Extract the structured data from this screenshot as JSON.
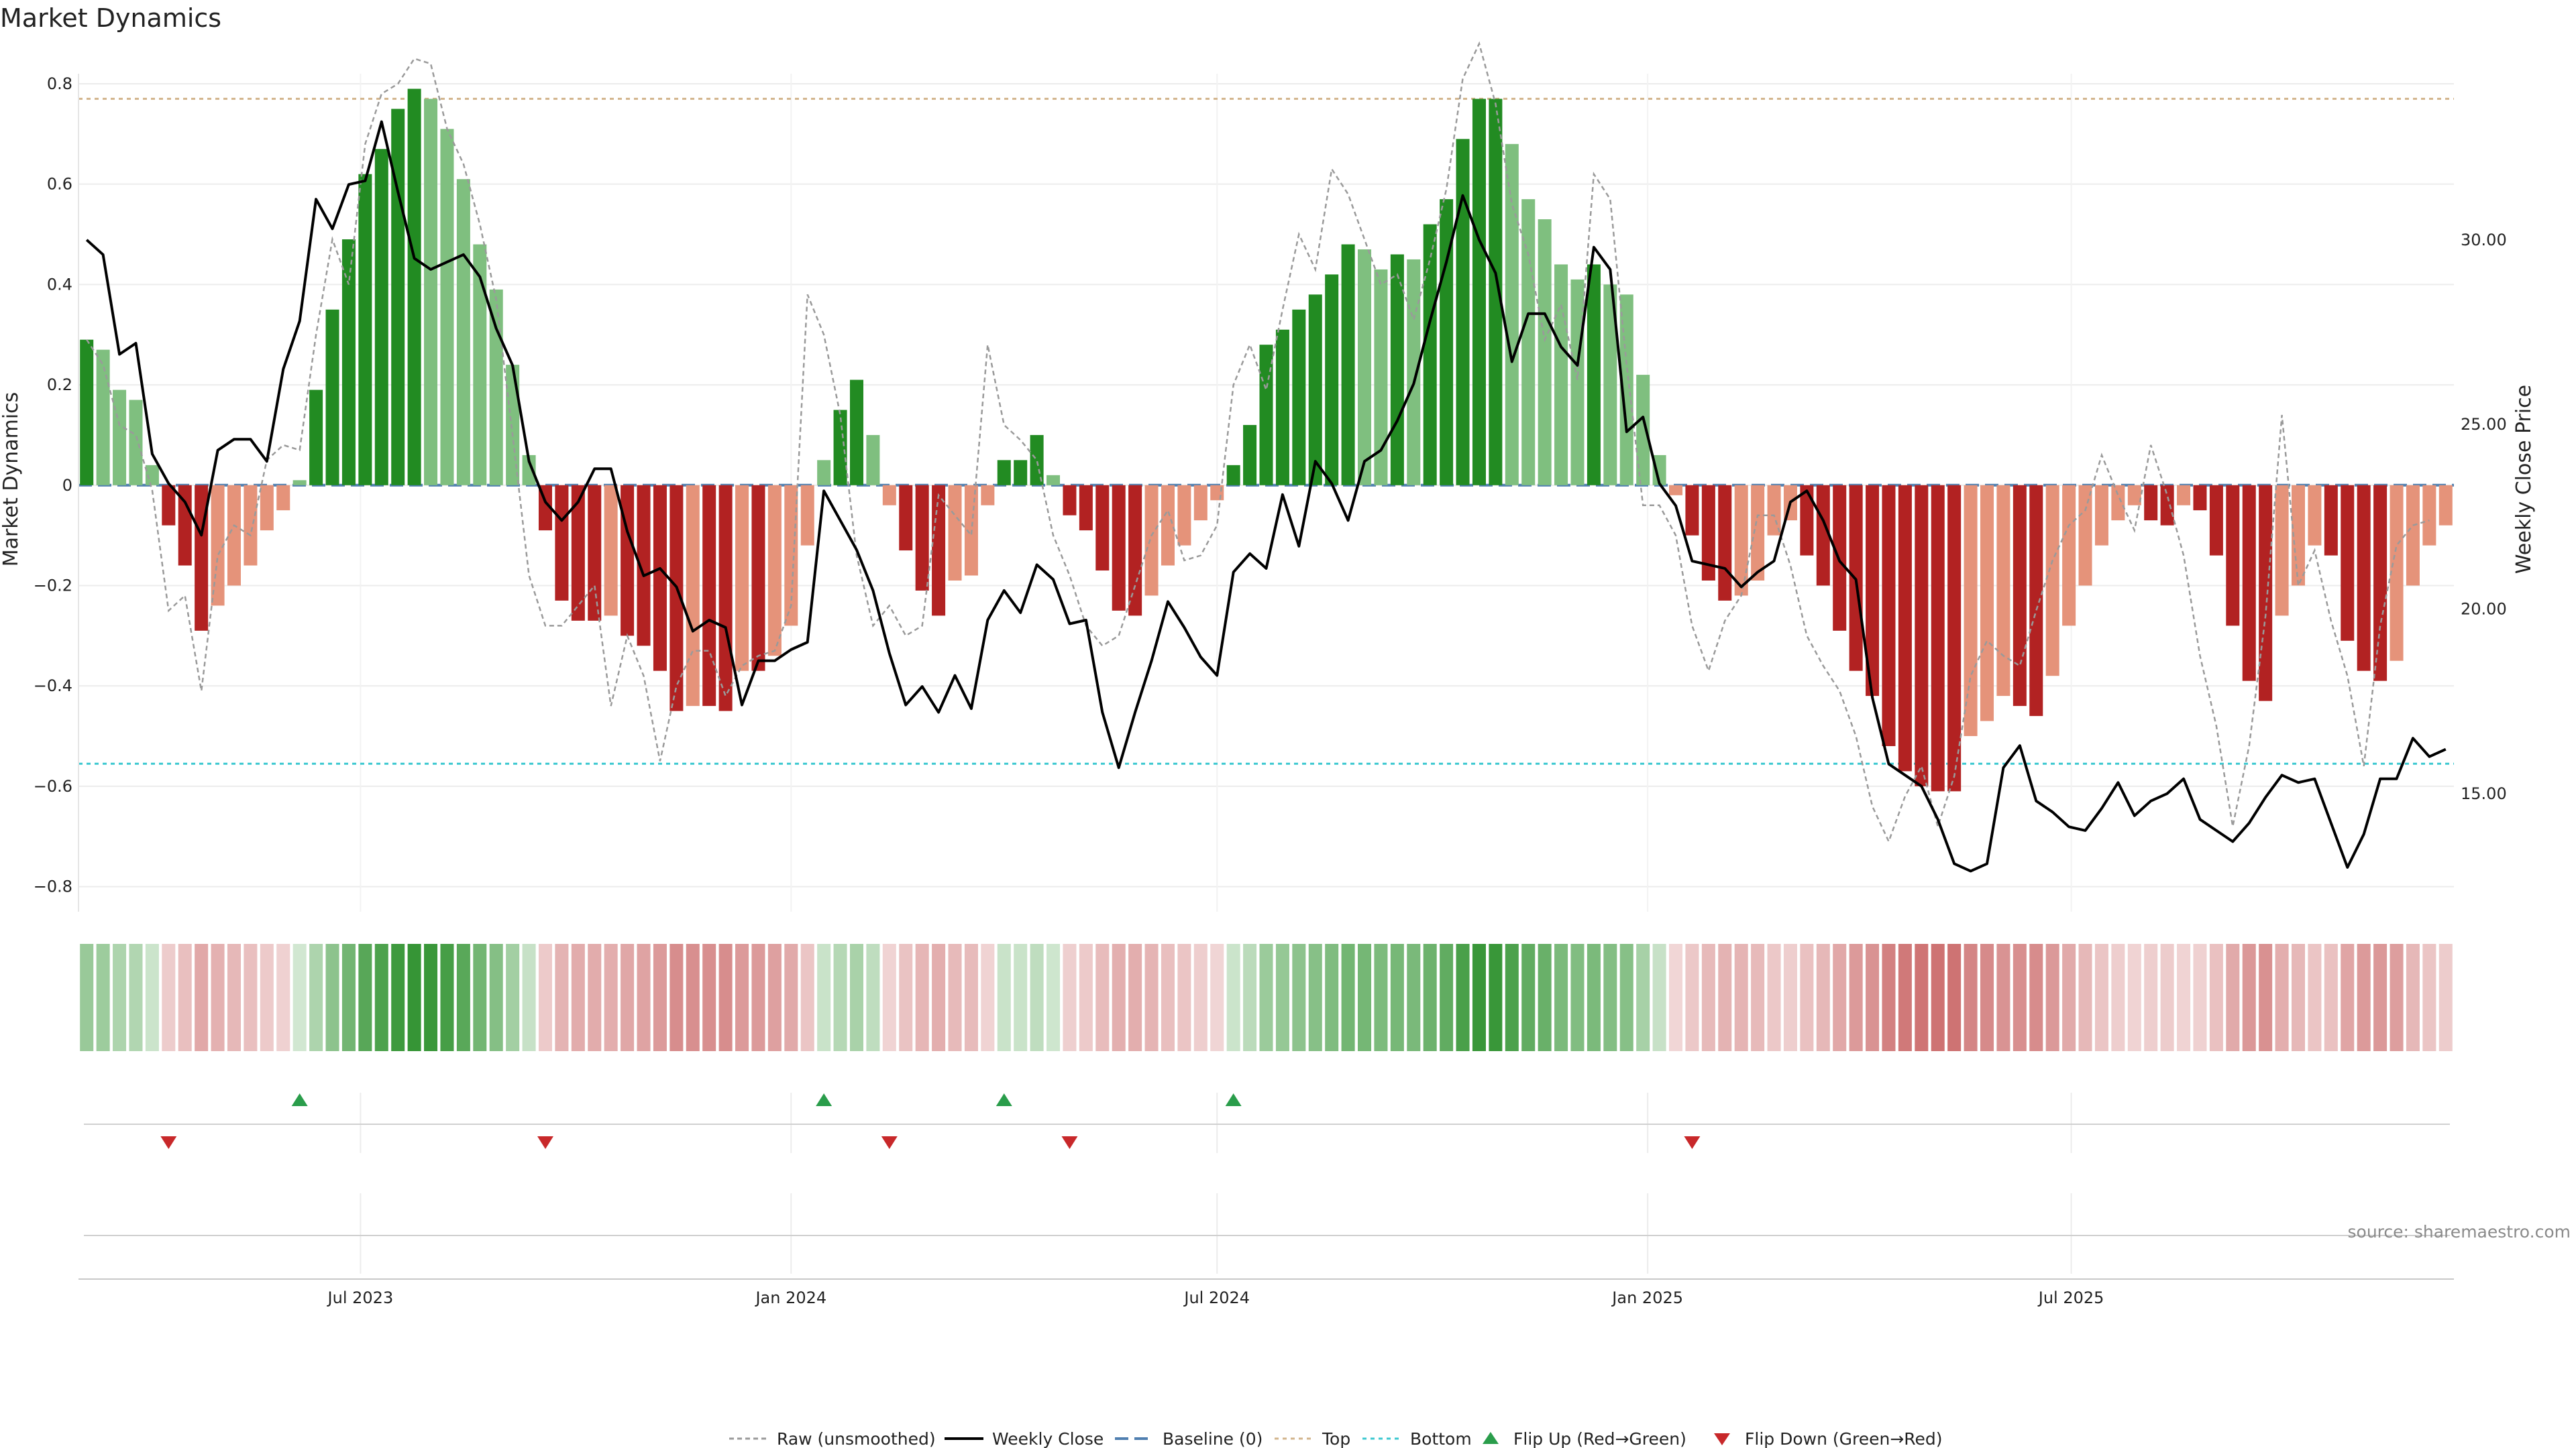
{
  "chart_data": {
    "type": "bar",
    "title": "Market Dynamics",
    "ylabel_left": "Market Dynamics",
    "ylabel_right": "Weekly Close Price",
    "ylim_left": [
      -0.85,
      0.82
    ],
    "ylim_right": [
      11.8,
      34.5
    ],
    "yticks_left": [
      "0.8",
      "0.6",
      "0.4",
      "0.2",
      "0",
      "−0.2",
      "−0.4",
      "−0.6",
      "−0.8"
    ],
    "yticks_left_values": [
      0.8,
      0.6,
      0.4,
      0.2,
      0,
      -0.2,
      -0.4,
      -0.6,
      -0.8
    ],
    "yticks_right": [
      "30.00",
      "25.00",
      "20.00",
      "15.00"
    ],
    "yticks_right_values": [
      30,
      25,
      20,
      15
    ],
    "x_start": "2023-03-06",
    "xticks": [
      {
        "label": "Jul 2023",
        "date": "2023-07-01"
      },
      {
        "label": "Jan 2024",
        "date": "2024-01-01"
      },
      {
        "label": "Jul 2024",
        "date": "2024-07-01"
      },
      {
        "label": "Jan 2025",
        "date": "2025-01-01"
      },
      {
        "label": "Jul 2025",
        "date": "2025-07-01"
      }
    ],
    "reference_lines": {
      "baseline": 0,
      "top": 0.77,
      "bottom": -0.555
    },
    "market_dynamics": [
      0.29,
      0.27,
      0.19,
      0.17,
      0.04,
      -0.08,
      -0.16,
      -0.29,
      -0.24,
      -0.2,
      -0.16,
      -0.09,
      -0.05,
      0.01,
      0.19,
      0.35,
      0.49,
      0.62,
      0.67,
      0.75,
      0.79,
      0.77,
      0.71,
      0.61,
      0.48,
      0.39,
      0.24,
      0.06,
      -0.09,
      -0.23,
      -0.27,
      -0.27,
      -0.26,
      -0.3,
      -0.32,
      -0.37,
      -0.45,
      -0.44,
      -0.44,
      -0.45,
      -0.37,
      -0.37,
      -0.34,
      -0.28,
      -0.12,
      0.05,
      0.15,
      0.21,
      0.1,
      -0.04,
      -0.13,
      -0.21,
      -0.26,
      -0.19,
      -0.18,
      -0.04,
      0.05,
      0.05,
      0.1,
      0.02,
      -0.06,
      -0.09,
      -0.17,
      -0.25,
      -0.26,
      -0.22,
      -0.16,
      -0.12,
      -0.07,
      -0.03,
      0.04,
      0.12,
      0.28,
      0.31,
      0.35,
      0.38,
      0.42,
      0.48,
      0.47,
      0.43,
      0.46,
      0.45,
      0.52,
      0.57,
      0.69,
      0.77,
      0.77,
      0.68,
      0.57,
      0.53,
      0.44,
      0.41,
      0.44,
      0.4,
      0.38,
      0.22,
      0.06,
      -0.02,
      -0.1,
      -0.19,
      -0.23,
      -0.22,
      -0.19,
      -0.1,
      -0.07,
      -0.14,
      -0.2,
      -0.29,
      -0.37,
      -0.42,
      -0.52,
      -0.57,
      -0.6,
      -0.61,
      -0.61,
      -0.5,
      -0.47,
      -0.42,
      -0.44,
      -0.46,
      -0.38,
      -0.28,
      -0.2,
      -0.12,
      -0.07,
      -0.04,
      -0.07,
      -0.08,
      -0.04,
      -0.05,
      -0.14,
      -0.28,
      -0.39,
      -0.43,
      -0.26,
      -0.2,
      -0.12,
      -0.14,
      -0.31,
      -0.37,
      -0.39,
      -0.35,
      -0.2,
      -0.12,
      -0.08
    ],
    "raw_unsmoothed": [
      0.29,
      0.24,
      0.12,
      0.1,
      -0.01,
      -0.25,
      -0.22,
      -0.41,
      -0.14,
      -0.08,
      -0.1,
      0.05,
      0.08,
      0.07,
      0.3,
      0.49,
      0.4,
      0.68,
      0.78,
      0.8,
      0.85,
      0.84,
      0.71,
      0.64,
      0.52,
      0.37,
      0.1,
      -0.18,
      -0.28,
      -0.28,
      -0.24,
      -0.2,
      -0.44,
      -0.3,
      -0.38,
      -0.55,
      -0.4,
      -0.33,
      -0.33,
      -0.42,
      -0.36,
      -0.34,
      -0.33,
      -0.24,
      0.38,
      0.3,
      0.14,
      -0.14,
      -0.28,
      -0.24,
      -0.3,
      -0.28,
      -0.02,
      -0.06,
      -0.1,
      0.28,
      0.12,
      0.09,
      0.05,
      -0.1,
      -0.18,
      -0.28,
      -0.32,
      -0.3,
      -0.2,
      -0.1,
      -0.05,
      -0.15,
      -0.14,
      -0.08,
      0.2,
      0.28,
      0.19,
      0.35,
      0.5,
      0.43,
      0.63,
      0.58,
      0.49,
      0.4,
      0.42,
      0.33,
      0.45,
      0.59,
      0.81,
      0.88,
      0.76,
      0.56,
      0.46,
      0.29,
      0.36,
      0.21,
      0.62,
      0.57,
      0.24,
      -0.04,
      -0.04,
      -0.1,
      -0.28,
      -0.37,
      -0.27,
      -0.22,
      -0.06,
      -0.06,
      -0.16,
      -0.3,
      -0.36,
      -0.41,
      -0.5,
      -0.64,
      -0.71,
      -0.62,
      -0.56,
      -0.68,
      -0.58,
      -0.38,
      -0.31,
      -0.34,
      -0.36,
      -0.25,
      -0.15,
      -0.08,
      -0.05,
      0.06,
      -0.02,
      -0.09,
      0.08,
      -0.02,
      -0.14,
      -0.34,
      -0.48,
      -0.68,
      -0.52,
      -0.26,
      0.14,
      -0.2,
      -0.13,
      -0.27,
      -0.38,
      -0.56,
      -0.28,
      -0.12,
      -0.08,
      -0.07
    ],
    "weekly_close": [
      30.0,
      29.6,
      26.9,
      27.2,
      24.2,
      23.4,
      22.9,
      22.0,
      24.3,
      24.6,
      24.6,
      24.0,
      26.5,
      27.8,
      31.1,
      30.3,
      31.5,
      31.6,
      33.2,
      31.3,
      29.5,
      29.2,
      29.4,
      29.6,
      29.0,
      27.6,
      26.6,
      24.0,
      22.9,
      22.4,
      22.9,
      23.8,
      23.8,
      22.1,
      20.9,
      21.1,
      20.6,
      19.4,
      19.7,
      19.5,
      17.4,
      18.6,
      18.6,
      18.9,
      19.1,
      23.2,
      22.4,
      21.6,
      20.5,
      18.8,
      17.4,
      17.9,
      17.2,
      18.2,
      17.3,
      19.7,
      20.5,
      19.9,
      21.2,
      20.8,
      19.6,
      19.7,
      17.2,
      15.7,
      17.2,
      18.6,
      20.2,
      19.5,
      18.7,
      18.2,
      21.0,
      21.5,
      21.1,
      23.1,
      21.7,
      24.0,
      23.4,
      22.4,
      24.0,
      24.3,
      25.1,
      26.1,
      27.8,
      29.4,
      31.2,
      30.0,
      29.1,
      26.7,
      28.0,
      28.0,
      27.1,
      26.6,
      29.8,
      29.2,
      24.8,
      25.2,
      23.4,
      22.8,
      21.3,
      21.2,
      21.1,
      20.6,
      21.0,
      21.3,
      22.9,
      23.2,
      22.4,
      21.3,
      20.8,
      17.6,
      15.8,
      15.5,
      15.2,
      14.3,
      13.1,
      12.9,
      13.1,
      15.7,
      16.3,
      14.8,
      14.5,
      14.1,
      14.0,
      14.6,
      15.3,
      14.4,
      14.8,
      15.0,
      15.4,
      14.3,
      14.0,
      13.7,
      14.2,
      14.9,
      15.5,
      15.3,
      15.4,
      14.2,
      13.0,
      13.9,
      15.4,
      15.4,
      16.5,
      16.0,
      16.2
    ],
    "flip_up_weeks": [
      13,
      45,
      56,
      70
    ],
    "flip_down_weeks": [
      5,
      28,
      49,
      60,
      98
    ],
    "colors": {
      "strong_green": "#228b22",
      "light_green": "#7fbf7f",
      "strong_red": "#b22222",
      "light_red": "#e5937a",
      "raw_line": "#9a9a9a",
      "close_line": "#000000",
      "baseline": "#4f7fb0",
      "top": "#d2b48c",
      "bottom": "#3cc8d0",
      "flip_up": "#2a9d4b",
      "flip_down": "#c8282a"
    },
    "legend_position": "bottom-center",
    "legend": {
      "raw": "Raw (unsmoothed)",
      "close": "Weekly Close",
      "baseline": "Baseline (0)",
      "top": "Top",
      "bottom": "Bottom",
      "flip_up": "Flip Up (Red→Green)",
      "flip_down": "Flip Down (Green→Red)"
    },
    "source": "source: sharemaestro.com"
  }
}
